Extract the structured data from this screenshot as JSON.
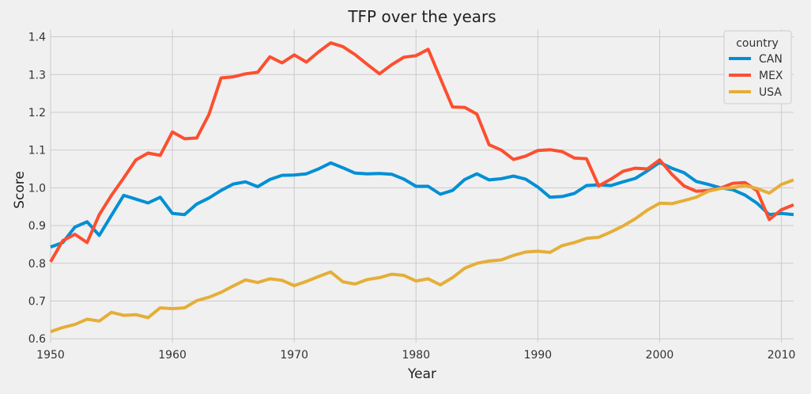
{
  "chart_data": {
    "type": "line",
    "title": "TFP over the years",
    "xlabel": "Year",
    "ylabel": "Score",
    "xlim": [
      1950,
      2011
    ],
    "ylim": [
      0.59,
      1.42
    ],
    "x_ticks": [
      1950,
      1960,
      1970,
      1980,
      1990,
      2000,
      2010
    ],
    "y_ticks": [
      0.6,
      0.7,
      0.8,
      0.9,
      1.0,
      1.1,
      1.2,
      1.3,
      1.4
    ],
    "y_tick_labels": [
      "0.6",
      "0.7",
      "0.8",
      "0.9",
      "1.0",
      "1.1",
      "1.2",
      "1.3",
      "1.4"
    ],
    "grid": true,
    "legend": {
      "title": "country",
      "placement": "top-right"
    },
    "x": [
      1950,
      1951,
      1952,
      1953,
      1954,
      1955,
      1956,
      1957,
      1958,
      1959,
      1960,
      1961,
      1962,
      1963,
      1964,
      1965,
      1966,
      1967,
      1968,
      1969,
      1970,
      1971,
      1972,
      1973,
      1974,
      1975,
      1976,
      1977,
      1978,
      1979,
      1980,
      1981,
      1982,
      1983,
      1984,
      1985,
      1986,
      1987,
      1988,
      1989,
      1990,
      1991,
      1992,
      1993,
      1994,
      1995,
      1996,
      1997,
      1998,
      1999,
      2000,
      2001,
      2002,
      2003,
      2004,
      2005,
      2006,
      2007,
      2008,
      2009,
      2010,
      2011
    ],
    "series": [
      {
        "name": "CAN",
        "color": "#008fd5",
        "values": [
          0.843,
          0.855,
          0.896,
          0.91,
          0.874,
          0.927,
          0.98,
          0.97,
          0.96,
          0.975,
          0.932,
          0.929,
          0.957,
          0.973,
          0.993,
          1.01,
          1.016,
          1.003,
          1.022,
          1.033,
          1.034,
          1.037,
          1.05,
          1.066,
          1.053,
          1.039,
          1.037,
          1.038,
          1.036,
          1.023,
          1.004,
          1.004,
          0.983,
          0.993,
          1.022,
          1.037,
          1.021,
          1.024,
          1.031,
          1.023,
          1.002,
          0.975,
          0.977,
          0.985,
          1.006,
          1.008,
          1.006,
          1.016,
          1.025,
          1.045,
          1.067,
          1.052,
          1.04,
          1.017,
          1.009,
          1.0,
          0.995,
          0.981,
          0.959,
          0.929,
          0.932,
          0.929
        ]
      },
      {
        "name": "MEX",
        "color": "#fc4f30",
        "values": [
          0.804,
          0.86,
          0.877,
          0.855,
          0.929,
          0.98,
          1.026,
          1.074,
          1.092,
          1.086,
          1.148,
          1.13,
          1.132,
          1.194,
          1.291,
          1.294,
          1.302,
          1.306,
          1.347,
          1.331,
          1.352,
          1.333,
          1.36,
          1.384,
          1.374,
          1.353,
          1.327,
          1.302,
          1.326,
          1.346,
          1.35,
          1.367,
          1.29,
          1.214,
          1.213,
          1.195,
          1.114,
          1.1,
          1.075,
          1.084,
          1.099,
          1.101,
          1.096,
          1.079,
          1.077,
          1.005,
          1.023,
          1.044,
          1.052,
          1.05,
          1.074,
          1.036,
          1.005,
          0.991,
          0.993,
          0.999,
          1.012,
          1.014,
          0.992,
          0.916,
          0.942,
          0.955
        ]
      },
      {
        "name": "USA",
        "color": "#e5ae38",
        "values": [
          0.619,
          0.63,
          0.638,
          0.652,
          0.647,
          0.67,
          0.662,
          0.664,
          0.656,
          0.682,
          0.68,
          0.682,
          0.701,
          0.71,
          0.723,
          0.74,
          0.756,
          0.749,
          0.759,
          0.755,
          0.741,
          0.752,
          0.765,
          0.777,
          0.751,
          0.745,
          0.757,
          0.762,
          0.771,
          0.768,
          0.753,
          0.759,
          0.743,
          0.762,
          0.787,
          0.8,
          0.806,
          0.809,
          0.821,
          0.83,
          0.832,
          0.829,
          0.847,
          0.855,
          0.866,
          0.869,
          0.883,
          0.899,
          0.918,
          0.941,
          0.959,
          0.958,
          0.966,
          0.975,
          0.991,
          0.998,
          1.0,
          1.006,
          0.998,
          0.986,
          1.009,
          1.021
        ]
      }
    ]
  }
}
